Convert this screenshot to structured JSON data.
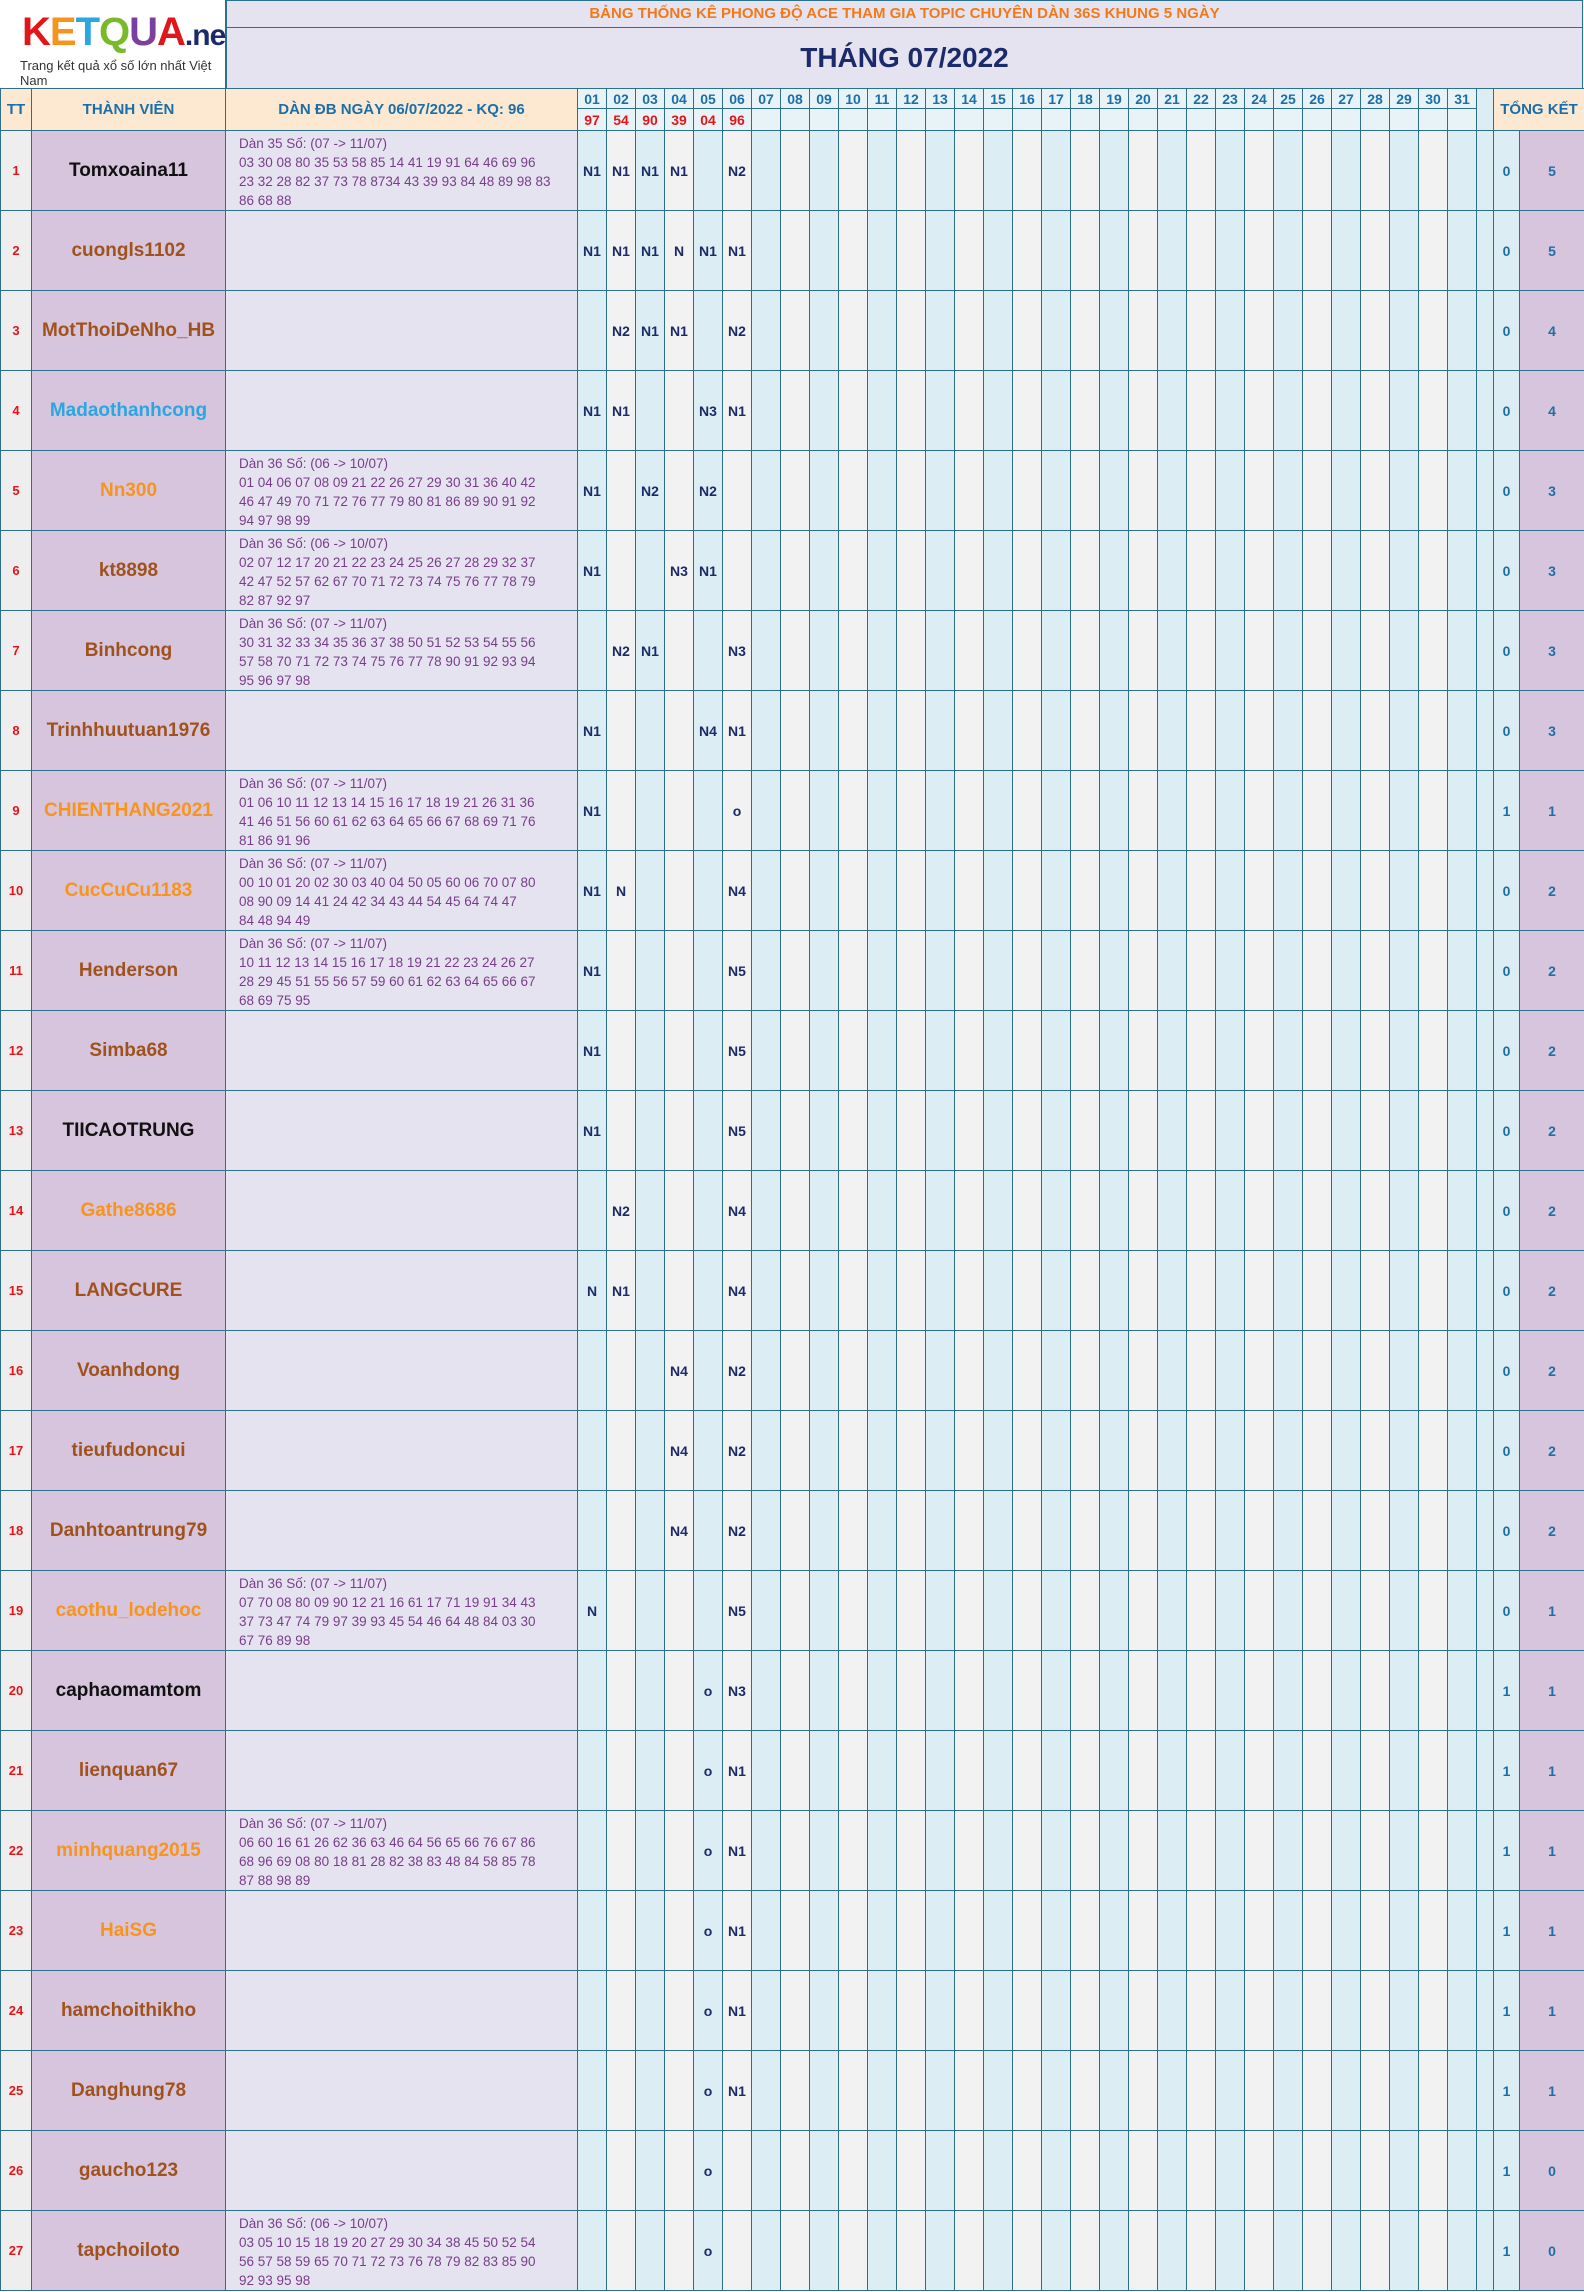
{
  "logo": {
    "brand": "KETQUA.net",
    "tagline": "Trang kết quả xổ số lớn nhất Việt Nam"
  },
  "banner": "BẢNG THỐNG KÊ PHONG ĐỘ ACE THAM GIA TOPIC CHUYÊN DÀN 36S KHUNG 5 NGÀY",
  "month_title": "THÁNG 07/2022",
  "headers": {
    "tt": "TT",
    "member": "THÀNH VIÊN",
    "dan": "DÀN ĐB NGÀY 06/07/2022 - KQ: 96",
    "total": "TỔNG KẾT"
  },
  "days": [
    "01",
    "02",
    "03",
    "04",
    "05",
    "06",
    "07",
    "08",
    "09",
    "10",
    "11",
    "12",
    "13",
    "14",
    "15",
    "16",
    "17",
    "18",
    "19",
    "20",
    "21",
    "22",
    "23",
    "24",
    "25",
    "26",
    "27",
    "28",
    "29",
    "30",
    "31"
  ],
  "results": [
    "97",
    "54",
    "90",
    "39",
    "04",
    "96"
  ],
  "colors": {
    "orange": "#f7941d",
    "brown": "#a0521d",
    "black": "#111111",
    "blue": "#2aa6e0"
  },
  "rows": [
    {
      "tt": "1",
      "name": "Tomxoaina11",
      "color": "black",
      "dan": "Dàn 35 Số: (07 -> 11/07)\n03 30 08 80 35 53 58 85 14 41 19 91 64 46 69 96\n23 32 28 82 37 73 78 8734 43 39 93 84 48 89 98 83\n86 68 88",
      "cells": [
        "N1",
        "N1",
        "N1",
        "N1",
        "",
        "N2"
      ],
      "t1": "0",
      "t2": "5"
    },
    {
      "tt": "2",
      "name": "cuongls1102",
      "color": "brown",
      "dan": "",
      "cells": [
        "N1",
        "N1",
        "N1",
        "N",
        "N1",
        "N1"
      ],
      "t1": "0",
      "t2": "5"
    },
    {
      "tt": "3",
      "name": "MotThoiDeNho_HB",
      "color": "brown",
      "dan": "",
      "cells": [
        "",
        "N2",
        "N1",
        "N1",
        "",
        "N2"
      ],
      "t1": "0",
      "t2": "4"
    },
    {
      "tt": "4",
      "name": "Madaothanhcong",
      "color": "blue",
      "dan": "",
      "cells": [
        "N1",
        "N1",
        "",
        "",
        "N3",
        "N1"
      ],
      "t1": "0",
      "t2": "4"
    },
    {
      "tt": "5",
      "name": "Nn300",
      "color": "orange",
      "dan": "Dàn 36 Số: (06 -> 10/07)\n01 04 06 07 08 09 21 22 26 27 29 30 31 36 40 42\n46 47 49 70 71 72 76 77 79 80 81 86 89 90 91 92\n94 97 98 99",
      "cells": [
        "N1",
        "",
        "N2",
        "",
        "N2",
        ""
      ],
      "t1": "0",
      "t2": "3"
    },
    {
      "tt": "6",
      "name": "kt8898",
      "color": "brown",
      "dan": "Dàn 36 Số: (06 -> 10/07)\n02 07 12 17 20 21 22 23 24 25 26 27 28 29 32 37\n42 47 52 57 62 67 70 71 72 73 74 75 76 77 78 79\n82 87 92 97",
      "cells": [
        "N1",
        "",
        "",
        "N3",
        "N1",
        ""
      ],
      "t1": "0",
      "t2": "3"
    },
    {
      "tt": "7",
      "name": "Binhcong",
      "color": "brown",
      "dan": "Dàn 36 Số: (07 -> 11/07)\n30 31 32 33 34 35 36 37 38 50 51 52 53 54 55 56\n57 58 70 71 72 73 74 75 76 77 78 90 91 92 93 94\n95 96 97 98",
      "cells": [
        "",
        "N2",
        "N1",
        "",
        "",
        "N3"
      ],
      "t1": "0",
      "t2": "3"
    },
    {
      "tt": "8",
      "name": "Trinhhuutuan1976",
      "color": "brown",
      "dan": "",
      "cells": [
        "N1",
        "",
        "",
        "",
        "N4",
        "N1"
      ],
      "t1": "0",
      "t2": "3"
    },
    {
      "tt": "9",
      "name": "CHIENTHANG2021",
      "color": "orange",
      "dan": "Dàn 36 Số: (07 -> 11/07)\n01 06 10 11 12 13 14 15 16 17 18 19 21 26 31 36\n41 46 51 56 60 61 62 63 64 65 66 67 68 69 71 76\n81 86 91 96",
      "cells": [
        "N1",
        "",
        "",
        "",
        "",
        "o"
      ],
      "t1": "1",
      "t2": "1"
    },
    {
      "tt": "10",
      "name": "CucCuCu1183",
      "color": "orange",
      "dan": "Dàn 36 Số: (07 -> 11/07)\n00 10 01 20 02 30 03 40 04 50 05 60 06 70 07 80\n08 90 09 14 41 24 42 34 43 44 54 45 64 74 47\n84 48 94 49",
      "cells": [
        "N1",
        "N",
        "",
        "",
        "",
        "N4"
      ],
      "t1": "0",
      "t2": "2"
    },
    {
      "tt": "11",
      "name": "Henderson",
      "color": "brown",
      "dan": "Dàn 36 Số: (07 -> 11/07)\n10 11 12 13 14 15 16 17 18 19 21 22 23 24 26 27\n28 29 45 51 55 56 57 59 60 61 62 63 64 65 66 67\n68 69 75 95",
      "cells": [
        "N1",
        "",
        "",
        "",
        "",
        "N5"
      ],
      "t1": "0",
      "t2": "2"
    },
    {
      "tt": "12",
      "name": "Simba68",
      "color": "brown",
      "dan": "",
      "cells": [
        "N1",
        "",
        "",
        "",
        "",
        "N5"
      ],
      "t1": "0",
      "t2": "2"
    },
    {
      "tt": "13",
      "name": "TIICAOTRUNG",
      "color": "black",
      "dan": "",
      "cells": [
        "N1",
        "",
        "",
        "",
        "",
        "N5"
      ],
      "t1": "0",
      "t2": "2"
    },
    {
      "tt": "14",
      "name": "Gathe8686",
      "color": "orange",
      "dan": "",
      "cells": [
        "",
        "N2",
        "",
        "",
        "",
        "N4"
      ],
      "t1": "0",
      "t2": "2"
    },
    {
      "tt": "15",
      "name": "LANGCURE",
      "color": "brown",
      "dan": "",
      "cells": [
        "N",
        "N1",
        "",
        "",
        "",
        "N4"
      ],
      "t1": "0",
      "t2": "2"
    },
    {
      "tt": "16",
      "name": "Voanhdong",
      "color": "brown",
      "dan": "",
      "cells": [
        "",
        "",
        "",
        "N4",
        "",
        "N2"
      ],
      "t1": "0",
      "t2": "2"
    },
    {
      "tt": "17",
      "name": "tieufudoncui",
      "color": "brown",
      "dan": "",
      "cells": [
        "",
        "",
        "",
        "N4",
        "",
        "N2"
      ],
      "t1": "0",
      "t2": "2"
    },
    {
      "tt": "18",
      "name": "Danhtoantrung79",
      "color": "brown",
      "dan": "",
      "cells": [
        "",
        "",
        "",
        "N4",
        "",
        "N2"
      ],
      "t1": "0",
      "t2": "2"
    },
    {
      "tt": "19",
      "name": "caothu_lodehoc",
      "color": "orange",
      "dan": "Dàn 36 Số: (07 -> 11/07)\n07 70 08 80 09 90 12 21 16 61 17 71 19 91 34 43\n37 73 47 74 79 97 39 93 45 54 46 64 48 84 03 30\n67 76 89 98",
      "cells": [
        "N",
        "",
        "",
        "",
        "",
        "N5"
      ],
      "t1": "0",
      "t2": "1"
    },
    {
      "tt": "20",
      "name": "caphaomamtom",
      "color": "black",
      "dan": "",
      "cells": [
        "",
        "",
        "",
        "",
        "o",
        "N3"
      ],
      "t1": "1",
      "t2": "1"
    },
    {
      "tt": "21",
      "name": "lienquan67",
      "color": "brown",
      "dan": "",
      "cells": [
        "",
        "",
        "",
        "",
        "o",
        "N1"
      ],
      "t1": "1",
      "t2": "1"
    },
    {
      "tt": "22",
      "name": "minhquang2015",
      "color": "orange",
      "dan": "Dàn 36 Số: (07 -> 11/07)\n06 60 16 61 26 62 36 63 46 64 56 65 66 76 67 86\n68 96 69 08 80 18 81 28 82 38 83 48 84 58 85 78\n87 88 98 89",
      "cells": [
        "",
        "",
        "",
        "",
        "o",
        "N1"
      ],
      "t1": "1",
      "t2": "1"
    },
    {
      "tt": "23",
      "name": "HaiSG",
      "color": "orange",
      "dan": "",
      "cells": [
        "",
        "",
        "",
        "",
        "o",
        "N1"
      ],
      "t1": "1",
      "t2": "1"
    },
    {
      "tt": "24",
      "name": "hamchoithikho",
      "color": "brown",
      "dan": "",
      "cells": [
        "",
        "",
        "",
        "",
        "o",
        "N1"
      ],
      "t1": "1",
      "t2": "1"
    },
    {
      "tt": "25",
      "name": "Danghung78",
      "color": "brown",
      "dan": "",
      "cells": [
        "",
        "",
        "",
        "",
        "o",
        "N1"
      ],
      "t1": "1",
      "t2": "1"
    },
    {
      "tt": "26",
      "name": "gaucho123",
      "color": "brown",
      "dan": "",
      "cells": [
        "",
        "",
        "",
        "",
        "o",
        ""
      ],
      "t1": "1",
      "t2": "0"
    },
    {
      "tt": "27",
      "name": "tapchoiloto",
      "color": "brown",
      "dan": "Dàn 36 Số: (06 -> 10/07)\n03 05 10 15 18 19 20 27 29 30 34 38 45 50 52 54\n56 57 58 59 65 70 71 72 73 76 78 79 82 83 85 90\n92 93 95 98",
      "cells": [
        "",
        "",
        "",
        "",
        "o",
        ""
      ],
      "t1": "1",
      "t2": "0"
    }
  ]
}
